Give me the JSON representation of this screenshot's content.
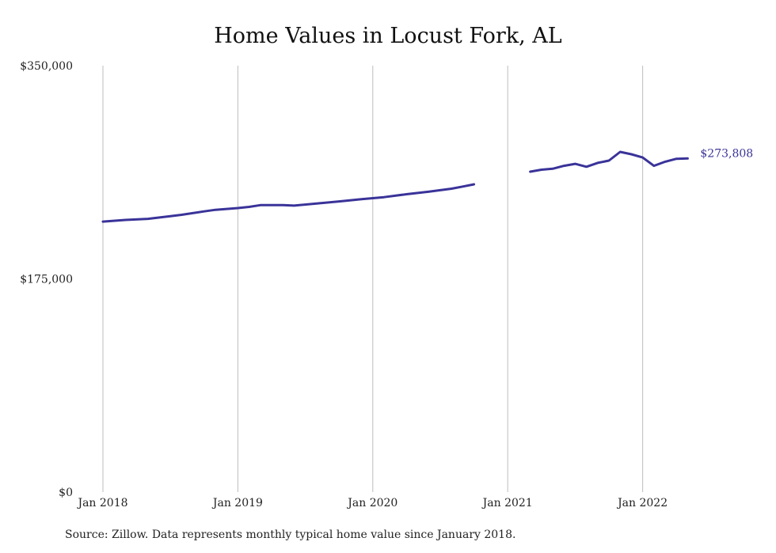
{
  "chart_data": {
    "type": "line",
    "title": "Home Values in Locust Fork, AL",
    "xlabel": "",
    "ylabel": "",
    "ylim": [
      0,
      350000
    ],
    "y_ticks": [
      {
        "value": 0,
        "label": "$0"
      },
      {
        "value": 175000,
        "label": "$175,000"
      },
      {
        "value": 350000,
        "label": "$350,000"
      }
    ],
    "x_range": [
      "2018-01",
      "2022-05"
    ],
    "x_ticks": [
      {
        "date": "2018-01",
        "label": "Jan 2018"
      },
      {
        "date": "2019-01",
        "label": "Jan 2019"
      },
      {
        "date": "2020-01",
        "label": "Jan 2020"
      },
      {
        "date": "2021-01",
        "label": "Jan 2021"
      },
      {
        "date": "2022-01",
        "label": "Jan 2022"
      }
    ],
    "grid": "vertical",
    "color": "#3a3399",
    "end_label": "$273,808",
    "series": [
      {
        "segments": [
          [
            {
              "x": "2018-01",
              "y": 222000
            },
            {
              "x": "2018-03",
              "y": 223400
            },
            {
              "x": "2018-05",
              "y": 224300
            },
            {
              "x": "2018-07",
              "y": 226400
            },
            {
              "x": "2018-08",
              "y": 227600
            },
            {
              "x": "2018-10",
              "y": 230400
            },
            {
              "x": "2018-11",
              "y": 231700
            },
            {
              "x": "2019-01",
              "y": 233100
            },
            {
              "x": "2019-02",
              "y": 234100
            },
            {
              "x": "2019-03",
              "y": 235500
            },
            {
              "x": "2019-05",
              "y": 235500
            },
            {
              "x": "2019-06",
              "y": 235100
            },
            {
              "x": "2019-08",
              "y": 236800
            },
            {
              "x": "2019-10",
              "y": 238600
            },
            {
              "x": "2019-12",
              "y": 240400
            },
            {
              "x": "2020-02",
              "y": 242100
            },
            {
              "x": "2020-04",
              "y": 244500
            },
            {
              "x": "2020-06",
              "y": 246600
            },
            {
              "x": "2020-08",
              "y": 249000
            },
            {
              "x": "2020-09",
              "y": 250800
            },
            {
              "x": "2020-10",
              "y": 252600
            }
          ],
          [
            {
              "x": "2021-03",
              "y": 263000
            },
            {
              "x": "2021-04",
              "y": 264600
            },
            {
              "x": "2021-05",
              "y": 265400
            },
            {
              "x": "2021-06",
              "y": 267800
            },
            {
              "x": "2021-07",
              "y": 269400
            },
            {
              "x": "2021-08",
              "y": 267000
            },
            {
              "x": "2021-09",
              "y": 270200
            },
            {
              "x": "2021-10",
              "y": 272100
            },
            {
              "x": "2021-11",
              "y": 279200
            },
            {
              "x": "2021-12",
              "y": 277300
            },
            {
              "x": "2022-01",
              "y": 274600
            },
            {
              "x": "2022-02",
              "y": 267800
            },
            {
              "x": "2022-03",
              "y": 271200
            },
            {
              "x": "2022-04",
              "y": 273600
            },
            {
              "x": "2022-05",
              "y": 273808
            }
          ]
        ]
      }
    ]
  },
  "source_note": "Source: Zillow. Data represents monthly typical home value since January 2018."
}
